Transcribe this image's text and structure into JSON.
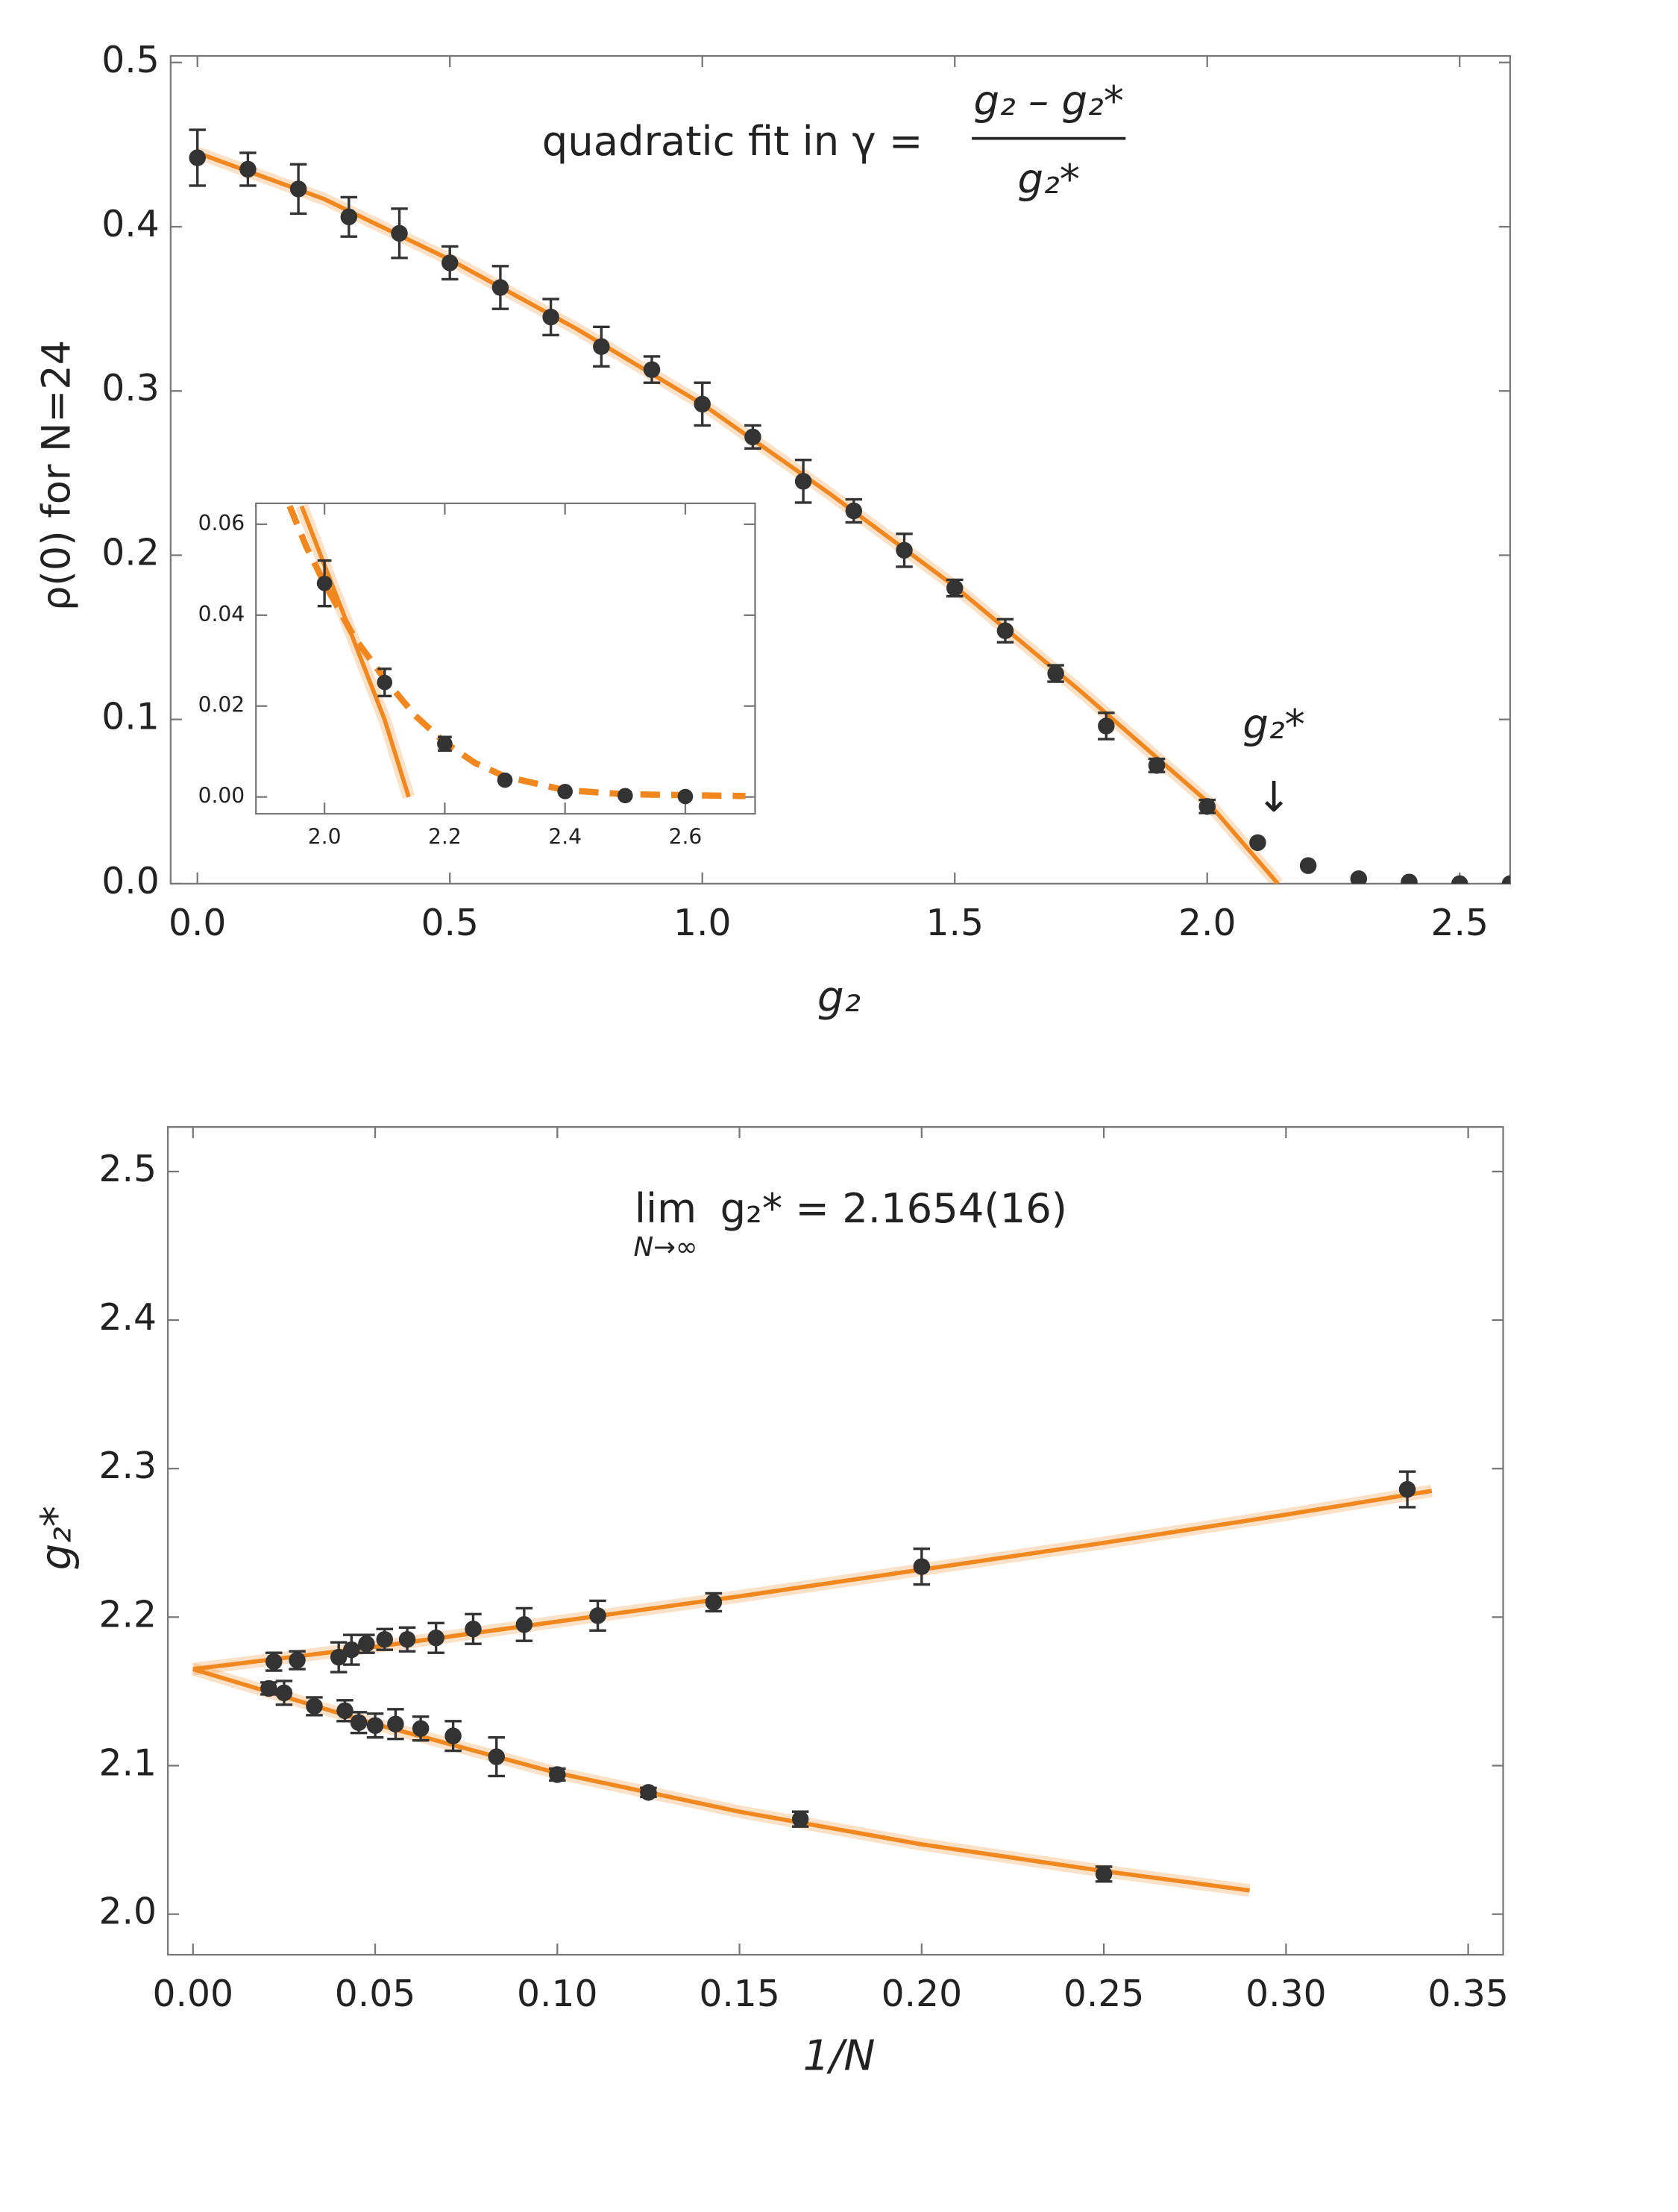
{
  "chart_data": [
    {
      "type": "scatter",
      "ylabel": "ρ(0) for N=24",
      "xlabel": "g₂",
      "annotation": {
        "prefix": "quadratic fit in γ =",
        "numerator": "g₂ – g₂*",
        "denominator": "g₂*"
      },
      "marker": {
        "label": "g₂*",
        "arrow": "↓"
      },
      "xlim": [
        -0.053,
        2.6
      ],
      "ylim": [
        0,
        0.504
      ],
      "xticks": [
        {
          "value": 0,
          "label": "0.0"
        },
        {
          "value": 0.5,
          "label": "0.5"
        },
        {
          "value": 1,
          "label": "1.0"
        },
        {
          "value": 1.5,
          "label": "1.5"
        },
        {
          "value": 2,
          "label": "2.0"
        },
        {
          "value": 2.5,
          "label": "2.5"
        }
      ],
      "yticks": [
        {
          "value": 0,
          "label": "0.0"
        },
        0.1,
        0.2,
        0.3,
        0.4,
        0.5
      ],
      "series": [
        {
          "style": "line",
          "color": "#f0871f",
          "x": [
            0,
            0.25,
            0.5,
            0.75,
            1.0,
            1.25,
            1.5,
            1.75,
            2.0,
            2.14
          ],
          "values": [
            0.445,
            0.417,
            0.38,
            0.338,
            0.292,
            0.238,
            0.181,
            0.117,
            0.05,
            0.0
          ]
        },
        {
          "style": "points",
          "color": "#333333",
          "x": [
            0,
            0.1,
            0.2,
            0.3,
            0.4,
            0.5,
            0.6,
            0.7,
            0.8,
            0.9,
            1.0,
            1.1,
            1.2,
            1.3,
            1.4,
            1.5,
            1.6,
            1.7,
            1.8,
            1.9,
            2.0,
            2.1,
            2.2,
            2.3,
            2.4,
            2.5,
            2.6
          ],
          "values": [
            0.442,
            0.435,
            0.423,
            0.406,
            0.396,
            0.378,
            0.363,
            0.345,
            0.327,
            0.313,
            0.292,
            0.272,
            0.245,
            0.227,
            0.203,
            0.18,
            0.154,
            0.128,
            0.096,
            0.072,
            0.047,
            0.025,
            0.011,
            0.003,
            0.001,
            0.0,
            0.0
          ],
          "errors": [
            0.017,
            0.01,
            0.015,
            0.012,
            0.015,
            0.01,
            0.013,
            0.011,
            0.012,
            0.008,
            0.013,
            0.007,
            0.013,
            0.007,
            0.01,
            0.005,
            0.007,
            0.005,
            0.008,
            0.004,
            0.004,
            null,
            null,
            null,
            null,
            null,
            null
          ]
        }
      ]
    },
    {
      "type": "scatter",
      "xlim": [
        1.886,
        2.716
      ],
      "ylim": [
        -0.0037,
        0.0646
      ],
      "xticks": [
        {
          "value": 2,
          "label": "2.0"
        },
        2.2,
        2.4,
        2.6
      ],
      "yticks": [
        {
          "value": 0,
          "label": "0.00"
        },
        0.02,
        0.04,
        0.06
      ],
      "series": [
        {
          "style": "line",
          "color": "#f0871f",
          "x": [
            1.962,
            2.0,
            2.05,
            2.1,
            2.14
          ],
          "values": [
            0.064,
            0.051,
            0.034,
            0.017,
            0.0
          ]
        },
        {
          "style": "dashed",
          "color": "#f0871f",
          "x": [
            1.942,
            1.97,
            2.0,
            2.05,
            2.1,
            2.15,
            2.2,
            2.25,
            2.3,
            2.4,
            2.5,
            2.7
          ],
          "values": [
            0.064,
            0.055,
            0.047,
            0.035,
            0.026,
            0.018,
            0.012,
            0.0075,
            0.0045,
            0.0015,
            0.0006,
            0.0002
          ]
        },
        {
          "style": "points",
          "color": "#333333",
          "x": [
            2.0,
            2.1,
            2.2,
            2.3,
            2.4,
            2.5,
            2.6
          ],
          "values": [
            0.047,
            0.0252,
            0.0117,
            0.0037,
            0.0012,
            0.0003,
            0.0001
          ],
          "errors": [
            0.005,
            0.003,
            0.0015,
            null,
            null,
            null,
            null
          ]
        }
      ]
    },
    {
      "type": "scatter",
      "ylabel": "g₂*",
      "xlabel": "1/N",
      "annotation": {
        "lim": "lim",
        "sub": "N→∞",
        "text": "g₂* = 2.1654(16)"
      },
      "xlim": [
        -0.0069,
        0.3596
      ],
      "ylim": [
        1.9727,
        2.53
      ],
      "xticks": [
        {
          "value": 0,
          "label": "0.00"
        },
        0.05,
        {
          "value": 0.1,
          "label": "0.10"
        },
        0.15,
        {
          "value": 0.2,
          "label": "0.20"
        },
        0.25,
        {
          "value": 0.3,
          "label": "0.30"
        },
        0.35
      ],
      "yticks": [
        {
          "value": 2,
          "label": "2.0"
        },
        2.1,
        2.2,
        2.3,
        2.4,
        2.5
      ],
      "series": [
        {
          "style": "line",
          "color": "#f0871f",
          "x": [
            0,
            0.05,
            0.1,
            0.15,
            0.2,
            0.25,
            0.3,
            0.34
          ],
          "values": [
            2.165,
            2.18,
            2.197,
            2.214,
            2.232,
            2.25,
            2.269,
            2.285
          ]
        },
        {
          "style": "line",
          "color": "#f0871f",
          "x": [
            0,
            0.05,
            0.1,
            0.15,
            0.2,
            0.25,
            0.29
          ],
          "values": [
            2.165,
            2.128,
            2.095,
            2.069,
            2.047,
            2.029,
            2.016
          ]
        },
        {
          "style": "points",
          "color": "#333333",
          "x": [
            0.0222,
            0.0286,
            0.04,
            0.0435,
            0.0476,
            0.0526,
            0.0588,
            0.0667,
            0.0769,
            0.0909,
            0.1111,
            0.1429,
            0.2,
            0.3333
          ],
          "values": [
            2.17,
            2.171,
            2.173,
            2.178,
            2.182,
            2.185,
            2.185,
            2.186,
            2.192,
            2.195,
            2.201,
            2.21,
            2.234,
            2.286
          ],
          "errors": [
            0.006,
            0.006,
            0.01,
            0.01,
            0.006,
            0.007,
            0.008,
            0.01,
            0.01,
            0.011,
            0.01,
            0.006,
            0.012,
            0.012
          ]
        },
        {
          "style": "points",
          "color": "#333333",
          "x": [
            0.0208,
            0.025,
            0.0333,
            0.0417,
            0.0455,
            0.05,
            0.0556,
            0.0625,
            0.0714,
            0.0833,
            0.1,
            0.125,
            0.1667,
            0.25
          ],
          "values": [
            2.152,
            2.149,
            2.14,
            2.137,
            2.129,
            2.127,
            2.128,
            2.125,
            2.12,
            2.106,
            2.094,
            2.082,
            2.064,
            2.027
          ],
          "errors": [
            0.004,
            0.008,
            0.006,
            0.007,
            0.007,
            0.008,
            0.01,
            0.008,
            0.01,
            0.013,
            0.004,
            0.003,
            0.005,
            0.005
          ]
        }
      ]
    }
  ]
}
